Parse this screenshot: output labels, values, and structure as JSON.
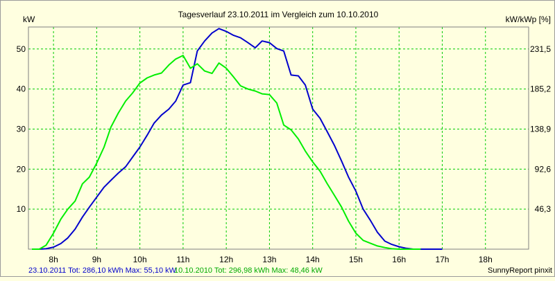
{
  "title": "Tagesverlauf 23.10.2011 im Vergleich zum 10.10.2010",
  "left_axis_unit": "kW",
  "right_axis_unit": "kW/kWp [%]",
  "footer": {
    "series1_summary": "23.10.2011 Tot: 286,10 kWh Max: 55,10 kW",
    "series2_summary": "10.10.2010 Tot: 296,98 kWh Max: 48,46 kW",
    "credit": "SunnyReport pinxit"
  },
  "colors": {
    "background": "#ffffe0",
    "grid": "#00cc00",
    "series1": "#0000cc",
    "series2": "#00ee00"
  },
  "chart_data": {
    "type": "line",
    "title": "Tagesverlauf 23.10.2011 im Vergleich zum 10.10.2010",
    "xlabel": "",
    "ylabel": "kW",
    "y2label": "kW/kWp [%]",
    "xlim": [
      7.42,
      19.0
    ],
    "ylim": [
      0,
      55.5
    ],
    "x_ticks": [
      8,
      9,
      10,
      11,
      12,
      13,
      14,
      15,
      16,
      17,
      18
    ],
    "x_tick_labels": [
      "8h",
      "9h",
      "10h",
      "11h",
      "12h",
      "13h",
      "14h",
      "15h",
      "16h",
      "17h",
      "18h"
    ],
    "y_ticks": [
      10,
      20,
      30,
      40,
      50
    ],
    "y_tick_labels": [
      "10",
      "20",
      "30",
      "40",
      "50"
    ],
    "y2_tick_labels": [
      "46,3",
      "92,6",
      "138,9",
      "185,2",
      "231,5"
    ],
    "grid": true,
    "series": [
      {
        "name": "23.10.2011",
        "color": "#0000cc",
        "points": [
          [
            7.5,
            0
          ],
          [
            7.67,
            0
          ],
          [
            7.83,
            0.1
          ],
          [
            8.0,
            0.5
          ],
          [
            8.17,
            1.4
          ],
          [
            8.33,
            2.8
          ],
          [
            8.5,
            5.0
          ],
          [
            8.67,
            8.0
          ],
          [
            8.83,
            10.5
          ],
          [
            9.0,
            13.0
          ],
          [
            9.17,
            15.5
          ],
          [
            9.33,
            17.2
          ],
          [
            9.5,
            19.0
          ],
          [
            9.67,
            20.6
          ],
          [
            9.83,
            23.0
          ],
          [
            10.0,
            25.5
          ],
          [
            10.17,
            28.5
          ],
          [
            10.33,
            31.5
          ],
          [
            10.5,
            33.5
          ],
          [
            10.67,
            35.0
          ],
          [
            10.83,
            37.0
          ],
          [
            11.0,
            41.0
          ],
          [
            11.17,
            41.6
          ],
          [
            11.33,
            49.5
          ],
          [
            11.5,
            52.0
          ],
          [
            11.67,
            54.0
          ],
          [
            11.83,
            55.1
          ],
          [
            12.0,
            54.4
          ],
          [
            12.17,
            53.4
          ],
          [
            12.33,
            52.8
          ],
          [
            12.5,
            51.6
          ],
          [
            12.67,
            50.3
          ],
          [
            12.83,
            52.0
          ],
          [
            13.0,
            51.6
          ],
          [
            13.17,
            50.1
          ],
          [
            13.33,
            49.5
          ],
          [
            13.5,
            43.5
          ],
          [
            13.67,
            43.3
          ],
          [
            13.83,
            41.0
          ],
          [
            14.0,
            35.0
          ],
          [
            14.17,
            32.7
          ],
          [
            14.33,
            29.5
          ],
          [
            14.5,
            26.0
          ],
          [
            14.67,
            22.0
          ],
          [
            14.83,
            18.0
          ],
          [
            15.0,
            14.5
          ],
          [
            15.17,
            10.0
          ],
          [
            15.33,
            7.3
          ],
          [
            15.5,
            4.2
          ],
          [
            15.67,
            2.0
          ],
          [
            15.83,
            1.2
          ],
          [
            16.0,
            0.6
          ],
          [
            16.17,
            0.2
          ],
          [
            16.33,
            0
          ],
          [
            16.5,
            0
          ],
          [
            16.67,
            0
          ],
          [
            16.83,
            0
          ],
          [
            17.0,
            0
          ]
        ]
      },
      {
        "name": "10.10.2010",
        "color": "#00ee00",
        "points": [
          [
            7.5,
            0
          ],
          [
            7.67,
            0
          ],
          [
            7.83,
            1.0
          ],
          [
            8.0,
            4.0
          ],
          [
            8.17,
            7.5
          ],
          [
            8.33,
            10.0
          ],
          [
            8.5,
            12.0
          ],
          [
            8.67,
            16.3
          ],
          [
            8.83,
            18.0
          ],
          [
            9.0,
            21.5
          ],
          [
            9.17,
            25.5
          ],
          [
            9.33,
            30.5
          ],
          [
            9.5,
            34.0
          ],
          [
            9.67,
            37.0
          ],
          [
            9.83,
            39.0
          ],
          [
            10.0,
            41.5
          ],
          [
            10.17,
            42.8
          ],
          [
            10.33,
            43.5
          ],
          [
            10.5,
            44.0
          ],
          [
            10.67,
            46.0
          ],
          [
            10.83,
            47.5
          ],
          [
            11.0,
            48.4
          ],
          [
            11.17,
            45.2
          ],
          [
            11.33,
            46.3
          ],
          [
            11.5,
            44.5
          ],
          [
            11.67,
            43.9
          ],
          [
            11.83,
            46.5
          ],
          [
            12.0,
            45.2
          ],
          [
            12.17,
            43.0
          ],
          [
            12.33,
            40.8
          ],
          [
            12.5,
            40.0
          ],
          [
            12.67,
            39.5
          ],
          [
            12.83,
            38.8
          ],
          [
            13.0,
            38.6
          ],
          [
            13.17,
            36.5
          ],
          [
            13.33,
            31.0
          ],
          [
            13.5,
            29.8
          ],
          [
            13.67,
            27.5
          ],
          [
            13.83,
            24.5
          ],
          [
            14.0,
            21.8
          ],
          [
            14.17,
            19.5
          ],
          [
            14.33,
            16.5
          ],
          [
            14.5,
            13.5
          ],
          [
            14.67,
            10.5
          ],
          [
            14.83,
            7.0
          ],
          [
            15.0,
            4.0
          ],
          [
            15.17,
            2.2
          ],
          [
            15.33,
            1.5
          ],
          [
            15.5,
            0.8
          ],
          [
            15.67,
            0.4
          ],
          [
            15.83,
            0.1
          ],
          [
            16.0,
            0
          ],
          [
            16.17,
            0
          ],
          [
            16.33,
            0
          ],
          [
            16.5,
            0
          ]
        ]
      }
    ]
  }
}
